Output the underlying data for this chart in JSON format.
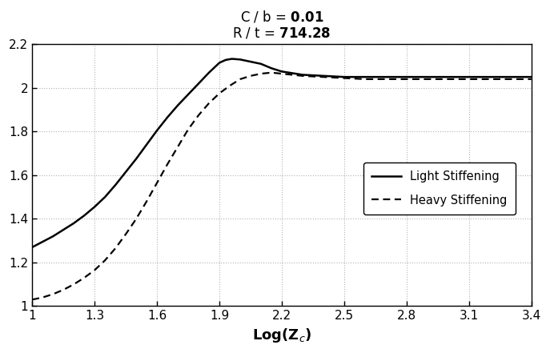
{
  "title_line1_normal": "C / b = ",
  "title_line1_bold": "0.01",
  "title_line2_normal": "R / t = ",
  "title_line2_bold": "714.28",
  "xlabel": "Log(Z$_c$)",
  "xlim": [
    1.0,
    3.4
  ],
  "ylim": [
    1.0,
    2.2
  ],
  "xticks": [
    1.0,
    1.3,
    1.6,
    1.9,
    2.2,
    2.5,
    2.8,
    3.1,
    3.4
  ],
  "yticks": [
    1.0,
    1.2,
    1.4,
    1.6,
    1.8,
    2.0,
    2.2
  ],
  "grid_color": "#aaaaaa",
  "background_color": "#ffffff",
  "light_x": [
    1.0,
    1.05,
    1.1,
    1.15,
    1.2,
    1.25,
    1.3,
    1.35,
    1.4,
    1.45,
    1.5,
    1.55,
    1.6,
    1.65,
    1.7,
    1.75,
    1.8,
    1.85,
    1.9,
    1.93,
    1.96,
    2.0,
    2.05,
    2.1,
    2.15,
    2.2,
    2.3,
    2.4,
    2.5,
    2.6,
    2.7,
    2.8,
    2.9,
    3.0,
    3.1,
    3.2,
    3.3,
    3.4
  ],
  "light_y": [
    1.27,
    1.295,
    1.32,
    1.35,
    1.38,
    1.415,
    1.455,
    1.5,
    1.555,
    1.615,
    1.675,
    1.74,
    1.805,
    1.865,
    1.92,
    1.97,
    2.02,
    2.07,
    2.115,
    2.128,
    2.133,
    2.13,
    2.12,
    2.11,
    2.09,
    2.075,
    2.06,
    2.055,
    2.05,
    2.05,
    2.05,
    2.05,
    2.05,
    2.05,
    2.05,
    2.05,
    2.05,
    2.05
  ],
  "heavy_x": [
    1.0,
    1.05,
    1.1,
    1.15,
    1.2,
    1.25,
    1.3,
    1.35,
    1.4,
    1.45,
    1.5,
    1.55,
    1.6,
    1.65,
    1.7,
    1.75,
    1.8,
    1.85,
    1.9,
    1.95,
    2.0,
    2.05,
    2.1,
    2.15,
    2.2,
    2.3,
    2.4,
    2.5,
    2.6,
    2.7,
    2.8,
    2.9,
    3.0,
    3.1,
    3.2,
    3.3,
    3.4
  ],
  "heavy_y": [
    1.03,
    1.04,
    1.055,
    1.075,
    1.1,
    1.13,
    1.165,
    1.21,
    1.265,
    1.33,
    1.4,
    1.48,
    1.565,
    1.65,
    1.73,
    1.81,
    1.875,
    1.93,
    1.975,
    2.01,
    2.04,
    2.055,
    2.065,
    2.07,
    2.065,
    2.055,
    2.05,
    2.045,
    2.04,
    2.04,
    2.04,
    2.04,
    2.04,
    2.04,
    2.04,
    2.04,
    2.04
  ],
  "light_color": "#000000",
  "heavy_color": "#000000",
  "light_linewidth": 1.8,
  "heavy_linewidth": 1.6,
  "legend_light_label": "Light Stiffening",
  "legend_heavy_label": "Heavy Stiffening"
}
